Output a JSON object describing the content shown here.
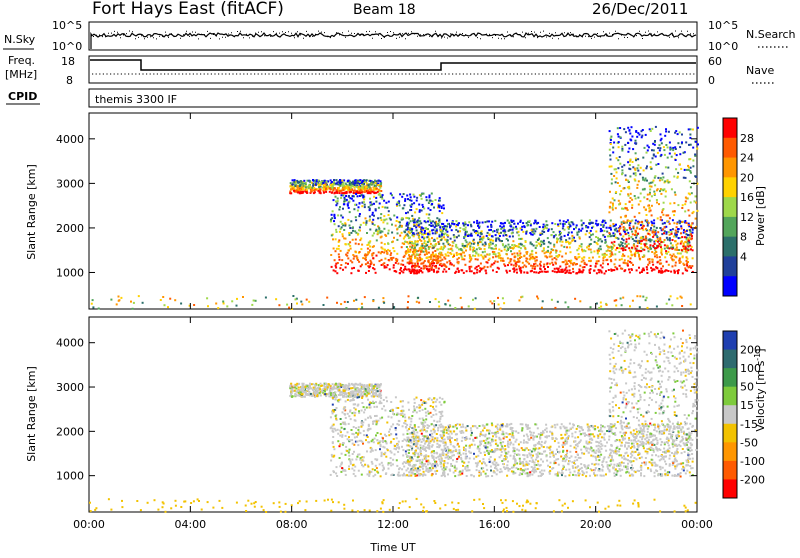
{
  "header": {
    "station": "Fort Hays East (fitACF)",
    "beam": "Beam 18",
    "date": "26/Dec/2011"
  },
  "strip_labels": {
    "nsky": "N.Sky",
    "nsky_tick_top": "10^5",
    "nsky_tick_bottom": "10^0",
    "nsearch": "N.Search",
    "nsearch_tick_top": "10^5",
    "nsearch_tick_bottom": "10^0",
    "freq_line1": "Freq.",
    "freq_line2": "[MHz]",
    "freq_tick_top": "18",
    "freq_tick_bottom": "8",
    "nave": "Nave",
    "nave_tick_top": "60",
    "nave_tick_bottom": "0",
    "cpid_label": "CPID",
    "cpid_value": "themis 3300 IF"
  },
  "chart_data": [
    {
      "type": "heatmap",
      "panel": "power",
      "ylabel": "Slant Range [km]",
      "y_ticks": [
        "4000",
        "3000",
        "2000",
        "1000"
      ],
      "y_tick_values": [
        4000,
        3000,
        2000,
        1000
      ],
      "ylim": [
        180,
        4580
      ],
      "x_ticks": [
        "00:00",
        "04:00",
        "08:00",
        "12:00",
        "16:00",
        "20:00",
        "00:00"
      ],
      "x_tick_values": [
        0,
        4,
        8,
        12,
        16,
        20,
        24
      ],
      "xlim": [
        0,
        24
      ],
      "colorbar": {
        "label": "Power [dB]",
        "ticks": [
          "28",
          "24",
          "20",
          "16",
          "12",
          "8",
          "4"
        ],
        "colors": [
          "#ff0000",
          "#ff5a00",
          "#ff9600",
          "#ffd200",
          "#9ed84a",
          "#52a55a",
          "#2b6f6a",
          "#20409a",
          "#0000ff"
        ]
      },
      "echo_bands": [
        {
          "start_h": 7.9,
          "end_h": 11.5,
          "top_km": 3100,
          "bottom_km": 2800
        },
        {
          "start_h": 9.5,
          "end_h": 14.0,
          "top_km": 2800,
          "bottom_km": 1000
        },
        {
          "start_h": 12.5,
          "end_h": 23.8,
          "top_km": 2200,
          "bottom_km": 1000
        },
        {
          "start_h": 20.5,
          "end_h": 24.0,
          "top_km": 4300,
          "bottom_km": 1500
        }
      ]
    },
    {
      "type": "heatmap",
      "panel": "velocity",
      "ylabel": "Slant Range [km]",
      "y_ticks": [
        "4000",
        "3000",
        "2000",
        "1000"
      ],
      "y_tick_values": [
        4000,
        3000,
        2000,
        1000
      ],
      "ylim": [
        180,
        4580
      ],
      "xlabel": "Time UT",
      "x_ticks": [
        "00:00",
        "04:00",
        "08:00",
        "12:00",
        "16:00",
        "20:00",
        "00:00"
      ],
      "x_tick_values": [
        0,
        4,
        8,
        12,
        16,
        20,
        24
      ],
      "xlim": [
        0,
        24
      ],
      "colorbar": {
        "label": "Velocity [m s^-1]",
        "ticks": [
          "200",
          "100",
          "50",
          "15",
          "-15",
          "-50",
          "-100",
          "-200"
        ],
        "colors": [
          "#1f3fb0",
          "#2e6b6f",
          "#3d9a4a",
          "#7ecb3c",
          "#c8c8c8",
          "#f2c200",
          "#ff9600",
          "#ff5a00",
          "#ff0000"
        ]
      }
    }
  ]
}
